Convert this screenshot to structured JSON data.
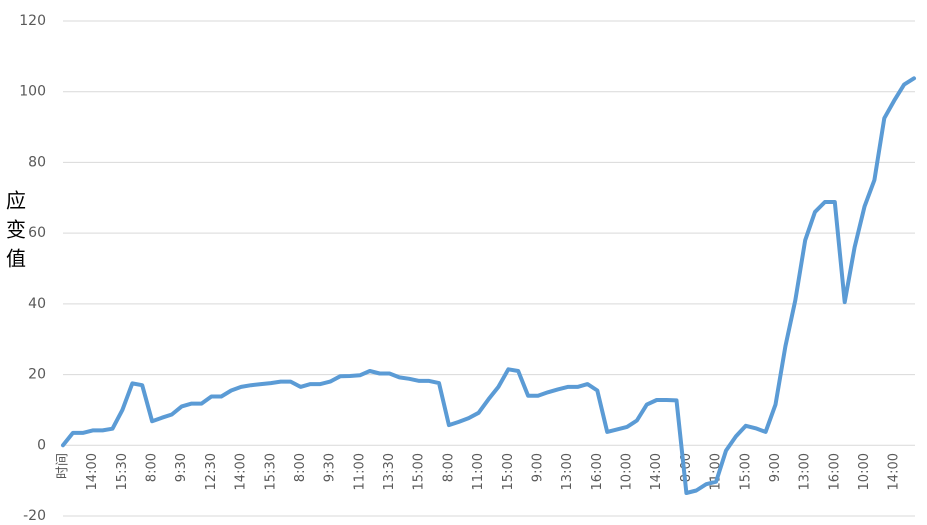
{
  "chart_data": {
    "type": "line",
    "y_label": [
      "应",
      "变",
      "值"
    ],
    "categories": [
      "时间",
      null,
      null,
      "14:00",
      null,
      null,
      "15:30",
      null,
      null,
      "8:00",
      null,
      null,
      "9:30",
      null,
      null,
      "12:30",
      null,
      null,
      "14:00",
      null,
      null,
      "15:30",
      null,
      null,
      "8:00",
      null,
      null,
      "9:30",
      null,
      null,
      "11:00",
      null,
      null,
      "13:30",
      null,
      null,
      "15:00",
      null,
      null,
      "8:00",
      null,
      null,
      "11:00",
      null,
      null,
      "15:00",
      null,
      null,
      "9:00",
      null,
      null,
      "13:00",
      null,
      null,
      "16:00",
      null,
      null,
      "10:00",
      null,
      null,
      "14:00",
      null,
      null,
      "8:00",
      null,
      null,
      "11:00",
      null,
      null,
      "15:00",
      null,
      null,
      "9:00",
      null,
      null,
      "13:00",
      null,
      null,
      "16:00",
      null,
      null,
      "10:00",
      null,
      null,
      "14:00",
      null,
      null
    ],
    "values": [
      0,
      3.5,
      3.5,
      4.2,
      4.2,
      4.7,
      10,
      17.5,
      17,
      6.8,
      7.8,
      8.7,
      11,
      11.8,
      11.8,
      13.8,
      13.8,
      15.5,
      16.5,
      17,
      17.3,
      17.6,
      18,
      18,
      16.5,
      17.3,
      17.3,
      18,
      19.5,
      19.6,
      19.8,
      21,
      20.3,
      20.3,
      19.2,
      18.8,
      18.2,
      18.2,
      17.6,
      5.7,
      6.6,
      7.7,
      9.2,
      13,
      16.5,
      21.5,
      21,
      14,
      14,
      15,
      15.8,
      16.5,
      16.5,
      17.3,
      15.5,
      3.8,
      4.5,
      5.2,
      7,
      11.5,
      12.8,
      12.8,
      12.7,
      -13.5,
      -12.8,
      -11,
      -10.3,
      -1.5,
      2.5,
      5.5,
      4.8,
      3.8,
      11.5,
      28,
      41,
      58,
      66,
      68.8,
      68.8,
      40.5,
      56,
      67.5,
      75,
      92.5,
      97.5,
      102,
      103.8
    ],
    "color": "#5b9bd5",
    "ylim": [
      -20,
      120
    ],
    "yticks": [
      -20,
      0,
      20,
      40,
      60,
      80,
      100,
      120
    ],
    "grid": true
  }
}
